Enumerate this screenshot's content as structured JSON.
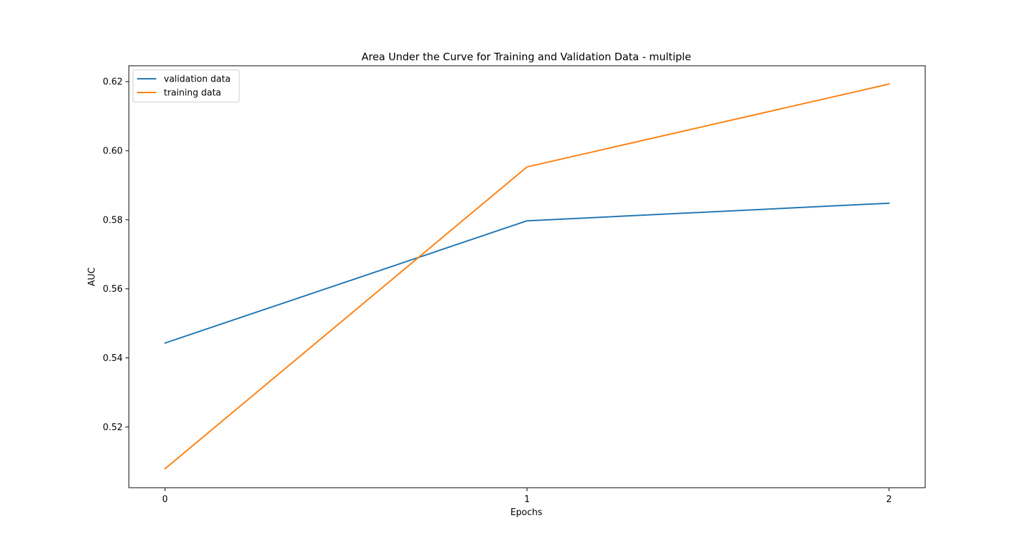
{
  "chart_data": {
    "type": "line",
    "title": "Area Under the Curve for Training and Validation Data - multiple",
    "xlabel": "Epochs",
    "ylabel": "AUC",
    "x": [
      0,
      1,
      2
    ],
    "xticks": [
      "0",
      "1",
      "2"
    ],
    "xlim": [
      -0.1,
      2.1
    ],
    "yticks": [
      "0.52",
      "0.54",
      "0.56",
      "0.58",
      "0.60",
      "0.62"
    ],
    "ytick_values": [
      0.52,
      0.54,
      0.56,
      0.58,
      0.6,
      0.62
    ],
    "ylim": [
      0.5024,
      0.6246
    ],
    "grid": false,
    "legend_position": "upper-left",
    "series": [
      {
        "name": "validation data",
        "color": "#1f77b4",
        "values": [
          0.5443,
          0.5797,
          0.5848
        ]
      },
      {
        "name": "training data",
        "color": "#ff7f0e",
        "values": [
          0.5079,
          0.5953,
          0.6193
        ]
      }
    ]
  }
}
